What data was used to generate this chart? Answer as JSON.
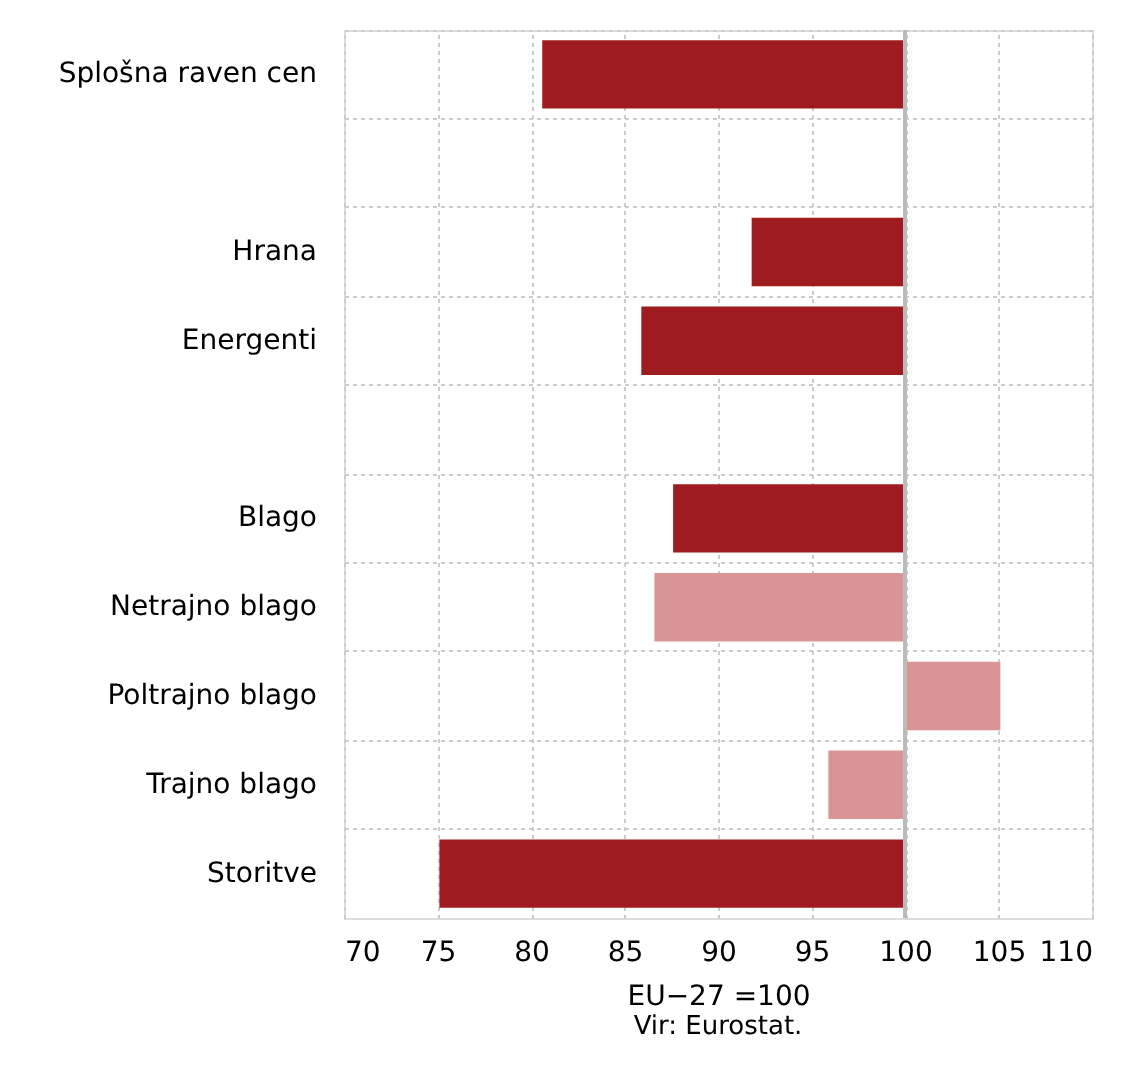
{
  "chart_data": {
    "type": "bar",
    "orientation": "horizontal",
    "categories": [
      "Splošna raven cen",
      null,
      "Hrana",
      "Energenti",
      null,
      "Blago",
      "Netrajno blago",
      "Poltrajno blago",
      "Trajno blago",
      "Storitve"
    ],
    "base": [
      100,
      null,
      100,
      100,
      null,
      100,
      100,
      100,
      100,
      100
    ],
    "values": [
      -19.4,
      null,
      -8.2,
      -14.1,
      null,
      -12.4,
      -13.4,
      5.1,
      -4.1,
      -24.9
    ],
    "colors": [
      "#9e1b20",
      null,
      "#9e1b20",
      "#9e1b20",
      null,
      "#9e1b20",
      "#d99594",
      "#d99594",
      "#d99594",
      "#9e1b20"
    ],
    "xlim": [
      70,
      110
    ],
    "xticks": [
      70,
      75,
      80,
      85,
      90,
      95,
      100,
      105,
      110
    ],
    "xlabel": "EU−27 =100",
    "annotations": [
      "Vir: Eurostat."
    ],
    "ref_lines": [
      {
        "axis": "x",
        "value": 100,
        "color": "#bbbbbb"
      }
    ],
    "grid": true
  }
}
